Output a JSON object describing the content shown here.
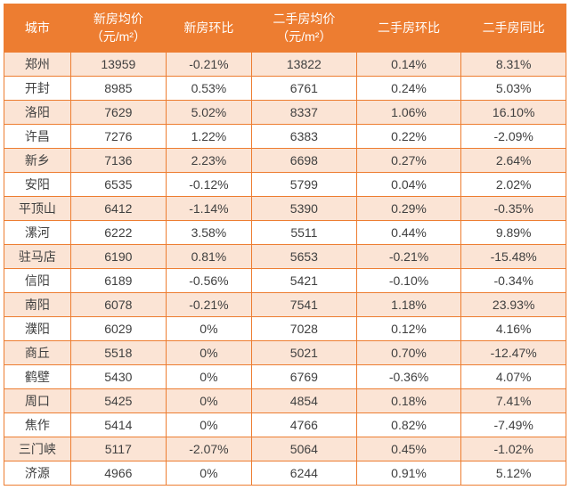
{
  "table": {
    "header_bg": "#ed7d31",
    "header_color": "#ffffff",
    "border_color": "#ed7d31",
    "row_odd_bg": "#fbe4d5",
    "row_even_bg": "#ffffff",
    "text_color": "#404040",
    "font_size": 14,
    "columns": [
      {
        "label": "城市",
        "width": 70
      },
      {
        "label": "新房均价\n（元/m²）",
        "width": 100
      },
      {
        "label": "新房环比",
        "width": 90
      },
      {
        "label": "二手房均价\n（元/m²）",
        "width": 110
      },
      {
        "label": "二手房环比",
        "width": 110
      },
      {
        "label": "二手房同比",
        "width": 110
      }
    ],
    "rows": [
      [
        "郑州",
        "13959",
        "-0.21%",
        "13822",
        "0.14%",
        "8.31%"
      ],
      [
        "开封",
        "8985",
        "0.53%",
        "6761",
        "0.24%",
        "5.03%"
      ],
      [
        "洛阳",
        "7629",
        "5.02%",
        "8337",
        "1.06%",
        "16.10%"
      ],
      [
        "许昌",
        "7276",
        "1.22%",
        "6383",
        "0.22%",
        "-2.09%"
      ],
      [
        "新乡",
        "7136",
        "2.23%",
        "6698",
        "0.27%",
        "2.64%"
      ],
      [
        "安阳",
        "6535",
        "-0.12%",
        "5799",
        "0.04%",
        "2.02%"
      ],
      [
        "平顶山",
        "6412",
        "-1.14%",
        "5390",
        "0.29%",
        "-0.35%"
      ],
      [
        "漯河",
        "6222",
        "3.58%",
        "5511",
        "0.44%",
        "9.89%"
      ],
      [
        "驻马店",
        "6190",
        "0.81%",
        "5653",
        "-0.21%",
        "-15.48%"
      ],
      [
        "信阳",
        "6189",
        "-0.56%",
        "5421",
        "-0.10%",
        "-0.34%"
      ],
      [
        "南阳",
        "6078",
        "-0.21%",
        "7541",
        "1.18%",
        "23.93%"
      ],
      [
        "濮阳",
        "6029",
        "0%",
        "7028",
        "0.12%",
        "4.16%"
      ],
      [
        "商丘",
        "5518",
        "0%",
        "5021",
        "0.70%",
        "-12.47%"
      ],
      [
        "鹤壁",
        "5430",
        "0%",
        "6769",
        "-0.36%",
        "4.07%"
      ],
      [
        "周口",
        "5425",
        "0%",
        "4854",
        "0.18%",
        "7.41%"
      ],
      [
        "焦作",
        "5414",
        "0%",
        "4766",
        "0.82%",
        "-7.49%"
      ],
      [
        "三门峡",
        "5117",
        "-2.07%",
        "5064",
        "0.45%",
        "-1.02%"
      ],
      [
        "济源",
        "4966",
        "0%",
        "6244",
        "0.91%",
        "5.12%"
      ]
    ]
  }
}
